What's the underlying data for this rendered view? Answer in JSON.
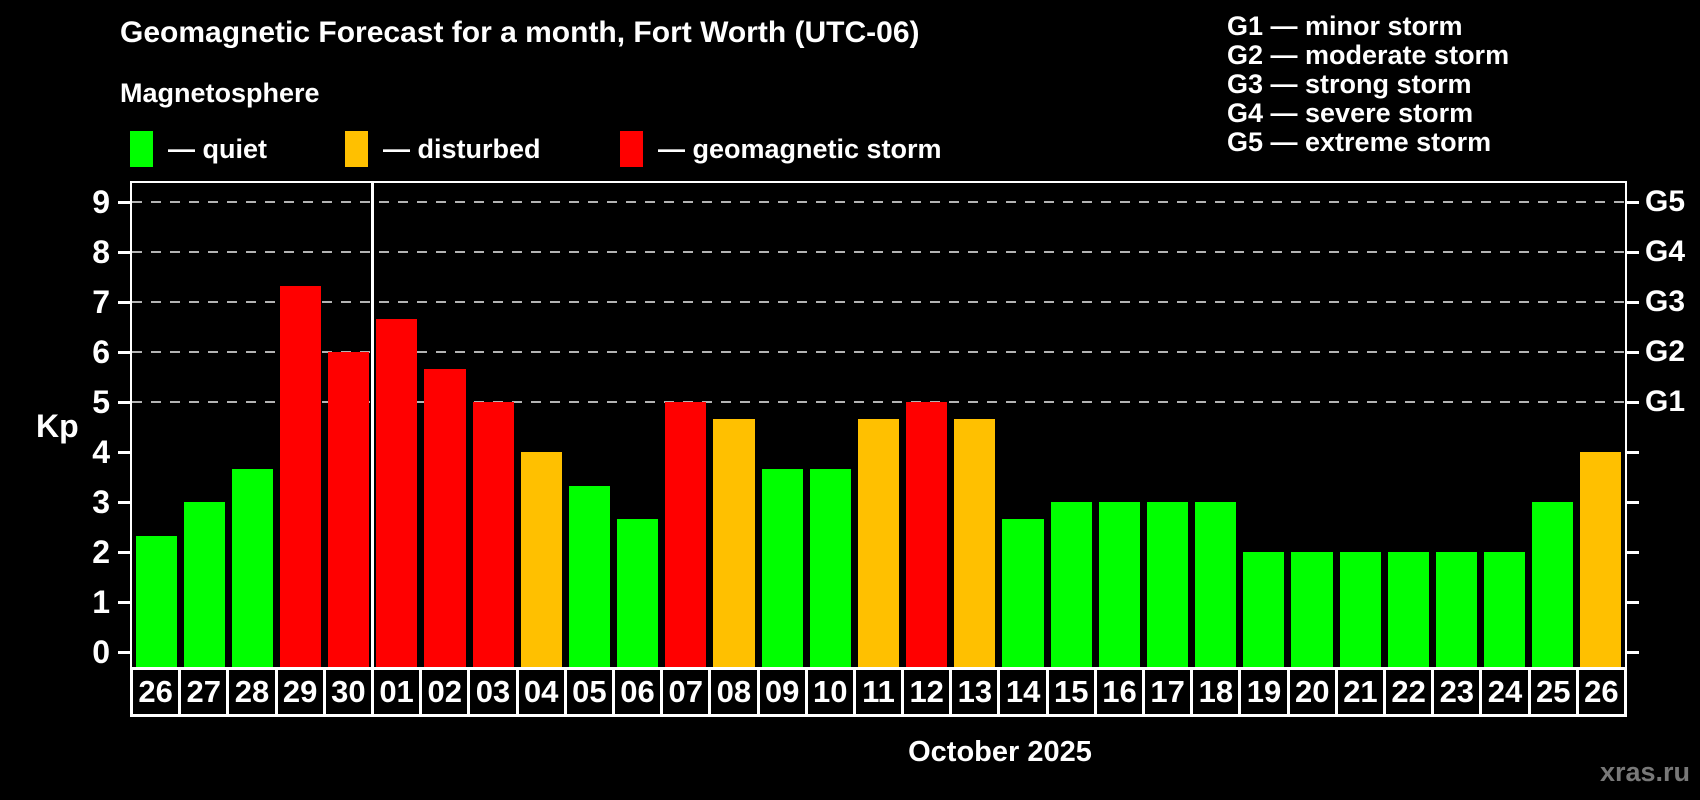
{
  "header": {
    "title": "Geomagnetic Forecast for a month, Fort Worth (UTC-06)",
    "subtitle": "Magnetosphere"
  },
  "legend": {
    "items": [
      {
        "label": "— quiet",
        "status": "quiet"
      },
      {
        "label": "— disturbed",
        "status": "disturbed"
      },
      {
        "label": "— geomagnetic storm",
        "status": "storm"
      }
    ]
  },
  "g_legend": {
    "lines": [
      "G1 — minor storm",
      "G2 — moderate storm",
      "G3 — strong storm",
      "G4 — severe storm",
      "G5 — extreme storm"
    ]
  },
  "axes": {
    "y_title": "Kp",
    "x_title": "October 2025",
    "y_ticks": [
      0,
      1,
      2,
      3,
      4,
      5,
      6,
      7,
      8,
      9
    ]
  },
  "footer": {
    "watermark": "xras.ru"
  },
  "chart_data": {
    "type": "bar",
    "title": "Geomagnetic Forecast for a month, Fort Worth (UTC-06)",
    "subtitle": "Magnetosphere",
    "xlabel": "October 2025",
    "ylabel": "Kp",
    "ylim": [
      0,
      9
    ],
    "categories": [
      "26",
      "27",
      "28",
      "29",
      "30",
      "01",
      "02",
      "03",
      "04",
      "05",
      "06",
      "07",
      "08",
      "09",
      "10",
      "11",
      "12",
      "13",
      "14",
      "15",
      "16",
      "17",
      "18",
      "19",
      "20",
      "21",
      "22",
      "23",
      "24",
      "25",
      "26"
    ],
    "values": [
      2.33,
      3.0,
      3.67,
      7.33,
      6.0,
      6.67,
      5.67,
      5.0,
      4.0,
      3.33,
      2.67,
      5.0,
      4.67,
      3.67,
      3.67,
      4.67,
      5.0,
      4.67,
      2.67,
      3.0,
      3.0,
      3.0,
      3.0,
      2.0,
      2.0,
      2.0,
      2.0,
      2.0,
      2.0,
      3.0,
      4.0
    ],
    "statuses": [
      "quiet",
      "quiet",
      "quiet",
      "storm",
      "storm",
      "storm",
      "storm",
      "storm",
      "disturbed",
      "quiet",
      "quiet",
      "storm",
      "disturbed",
      "quiet",
      "quiet",
      "disturbed",
      "storm",
      "disturbed",
      "quiet",
      "quiet",
      "quiet",
      "quiet",
      "quiet",
      "quiet",
      "quiet",
      "quiet",
      "quiet",
      "quiet",
      "quiet",
      "quiet",
      "disturbed"
    ],
    "status_colors": {
      "quiet": "#00ff00",
      "disturbed": "#ffc000",
      "storm": "#ff0000"
    },
    "gridlines_at": [
      5,
      6,
      7,
      8,
      9
    ],
    "right_axis_labels": {
      "5": "G1",
      "6": "G2",
      "7": "G3",
      "8": "G4",
      "9": "G5"
    },
    "month_boundary_after_index": 4,
    "grid_color": "#b3b3b3",
    "legend_position": "top",
    "grid": "dashed horizontal at G-storm levels only"
  }
}
